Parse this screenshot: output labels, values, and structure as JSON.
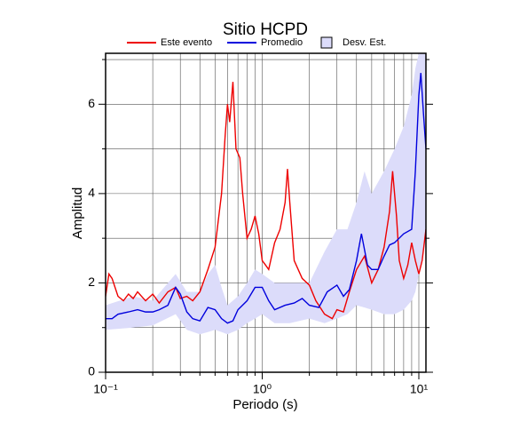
{
  "chart_data": {
    "type": "line",
    "title": "Sitio HCPD",
    "x_label": "Periodo (s)",
    "y_label": "Amplitud",
    "x_scale": "log",
    "xlim": [
      0.1,
      11.1
    ],
    "ylim": [
      0,
      7.14
    ],
    "xticks": [
      {
        "value": 0.1,
        "label": "10⁻¹"
      },
      {
        "value": 1,
        "label": "10⁰"
      },
      {
        "value": 10,
        "label": "10¹"
      }
    ],
    "x_minor_ticks": [
      0.2,
      0.3,
      0.4,
      0.5,
      0.6,
      0.7,
      0.8,
      0.9,
      2,
      3,
      4,
      5,
      6,
      7,
      8,
      9
    ],
    "yticks": [
      0,
      2,
      4,
      6
    ],
    "y_minor_ticks": [
      1,
      3,
      5,
      7
    ],
    "grid": true,
    "legend": "top",
    "series": [
      {
        "name": "Este evento",
        "style": "line",
        "color": "#ee0000",
        "x": [
          0.1,
          0.105,
          0.11,
          0.12,
          0.13,
          0.14,
          0.15,
          0.16,
          0.18,
          0.2,
          0.22,
          0.25,
          0.28,
          0.3,
          0.33,
          0.36,
          0.4,
          0.45,
          0.5,
          0.55,
          0.58,
          0.6,
          0.62,
          0.65,
          0.68,
          0.72,
          0.75,
          0.8,
          0.85,
          0.9,
          0.95,
          1.0,
          1.05,
          1.1,
          1.2,
          1.3,
          1.4,
          1.45,
          1.5,
          1.6,
          1.8,
          2.0,
          2.2,
          2.5,
          2.8,
          3.0,
          3.3,
          3.6,
          4.0,
          4.5,
          5.0,
          5.5,
          6.0,
          6.5,
          6.8,
          7.2,
          7.5,
          8.0,
          8.5,
          9.0,
          9.5,
          10.0,
          10.5,
          11.1
        ],
        "values": [
          1.7,
          2.2,
          2.1,
          1.7,
          1.6,
          1.75,
          1.65,
          1.8,
          1.6,
          1.75,
          1.55,
          1.8,
          1.9,
          1.65,
          1.7,
          1.6,
          1.8,
          2.3,
          2.8,
          4.0,
          5.3,
          6.0,
          5.6,
          6.5,
          5.0,
          4.8,
          4.0,
          3.0,
          3.2,
          3.5,
          3.1,
          2.5,
          2.4,
          2.3,
          2.9,
          3.2,
          3.8,
          4.55,
          3.8,
          2.5,
          2.1,
          1.95,
          1.6,
          1.3,
          1.2,
          1.4,
          1.35,
          1.8,
          2.3,
          2.6,
          2.0,
          2.3,
          2.8,
          3.6,
          4.5,
          3.5,
          2.5,
          2.1,
          2.4,
          2.9,
          2.5,
          2.2,
          2.5,
          3.2
        ]
      },
      {
        "name": "Promedio",
        "style": "line",
        "color": "#0000dd",
        "x": [
          0.1,
          0.11,
          0.12,
          0.14,
          0.16,
          0.18,
          0.2,
          0.22,
          0.25,
          0.28,
          0.3,
          0.33,
          0.36,
          0.4,
          0.45,
          0.5,
          0.55,
          0.6,
          0.65,
          0.7,
          0.8,
          0.9,
          1.0,
          1.1,
          1.2,
          1.4,
          1.6,
          1.8,
          2.0,
          2.3,
          2.6,
          3.0,
          3.3,
          3.6,
          4.0,
          4.3,
          4.7,
          5.0,
          5.5,
          6.0,
          6.5,
          7.0,
          8.0,
          9.0,
          9.5,
          10.0,
          10.3,
          10.7,
          11.1
        ],
        "values": [
          1.2,
          1.2,
          1.3,
          1.35,
          1.4,
          1.35,
          1.35,
          1.4,
          1.5,
          1.9,
          1.75,
          1.35,
          1.2,
          1.15,
          1.45,
          1.4,
          1.2,
          1.1,
          1.15,
          1.4,
          1.6,
          1.9,
          1.9,
          1.6,
          1.4,
          1.5,
          1.55,
          1.65,
          1.5,
          1.45,
          1.8,
          1.95,
          1.7,
          1.85,
          2.5,
          3.1,
          2.4,
          2.3,
          2.3,
          2.6,
          2.85,
          2.9,
          3.1,
          3.2,
          4.5,
          6.2,
          6.7,
          5.8,
          5.0
        ]
      },
      {
        "name": "Desv. Est.",
        "style": "band",
        "color": "#dcdcfa",
        "x": [
          0.1,
          0.15,
          0.2,
          0.28,
          0.33,
          0.4,
          0.45,
          0.5,
          0.55,
          0.6,
          0.7,
          0.8,
          0.9,
          1.0,
          1.2,
          1.5,
          2.0,
          2.5,
          3.0,
          3.5,
          4.0,
          4.5,
          5.0,
          6.0,
          7.0,
          8.0,
          9.0,
          9.5,
          10.0,
          11.1
        ],
        "values": [
          1.5,
          1.7,
          1.6,
          2.2,
          1.8,
          1.8,
          2.2,
          2.4,
          1.9,
          1.5,
          1.7,
          2.0,
          2.3,
          2.2,
          2.0,
          2.0,
          2.0,
          2.7,
          3.2,
          3.2,
          3.8,
          4.5,
          4.0,
          4.5,
          5.0,
          5.5,
          6.2,
          6.8,
          7.14,
          7.14
        ],
        "lower": [
          0.95,
          1.0,
          1.05,
          1.3,
          0.95,
          0.85,
          0.9,
          0.95,
          0.9,
          0.85,
          0.95,
          1.1,
          1.2,
          1.3,
          1.1,
          1.1,
          1.2,
          1.1,
          1.2,
          1.3,
          1.5,
          1.45,
          1.4,
          1.3,
          1.3,
          1.4,
          1.6,
          1.8,
          2.2,
          3.0
        ]
      }
    ]
  }
}
